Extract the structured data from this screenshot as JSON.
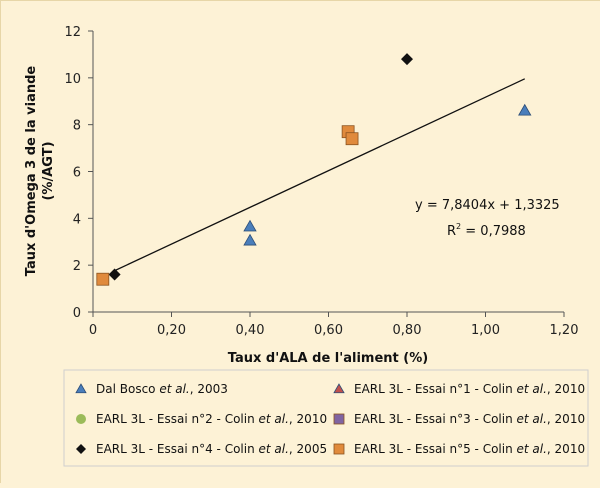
{
  "chart_data": {
    "type": "scatter",
    "xlabel": "Taux d'ALA de l'aliment (%)",
    "ylabel_line1": "Taux d'Omega 3 de la viande",
    "ylabel_line2": "(%/AGT)",
    "xlim": [
      0,
      1.2
    ],
    "ylim": [
      0,
      12
    ],
    "x_ticks": [
      "0",
      "0,20",
      "0,40",
      "0,60",
      "0,80",
      "1,00",
      "1,20"
    ],
    "x_tick_values": [
      0,
      0.2,
      0.4,
      0.6,
      0.8,
      1.0,
      1.2
    ],
    "y_ticks": [
      "0",
      "2",
      "4",
      "6",
      "8",
      "10",
      "12"
    ],
    "y_tick_values": [
      0,
      2,
      4,
      6,
      8,
      10,
      12
    ],
    "grid": "none",
    "legend_position": "bottom",
    "series": [
      {
        "legend": [
          "Dal Bosco ",
          "et al.",
          ", 2003"
        ],
        "marker": "triangle",
        "color": "#4a7ebb",
        "points": [
          [
            0.4,
            3.65
          ],
          [
            0.4,
            3.05
          ],
          [
            1.1,
            8.6
          ]
        ]
      },
      {
        "legend": [
          "EARL 3L - Essai n°1 - Colin ",
          "et al.",
          ", 2010"
        ],
        "marker": "triangle",
        "color": "#c0504d",
        "points": []
      },
      {
        "legend": [
          "EARL 3L - Essai n°2 - Colin ",
          "et al.",
          ", 2010"
        ],
        "marker": "circle",
        "color": "#9bbb59",
        "points": []
      },
      {
        "legend": [
          "EARL 3L - Essai n°3 - Colin ",
          "et al.",
          ", 2010"
        ],
        "marker": "square",
        "color": "#8064a2",
        "points": []
      },
      {
        "legend": [
          "EARL 3L - Essai n°4 - Colin ",
          "et al.",
          ", 2005"
        ],
        "marker": "diamond",
        "color": "#111111",
        "points": [
          [
            0.8,
            10.8
          ],
          [
            0.055,
            1.6
          ]
        ]
      },
      {
        "legend": [
          "EARL 3L - Essai n°5 - Colin ",
          "et al.",
          ", 2010"
        ],
        "marker": "square",
        "color": "#e08a3c",
        "points": [
          [
            0.65,
            7.7
          ],
          [
            0.66,
            7.4
          ],
          [
            0.025,
            1.4
          ]
        ]
      }
    ],
    "trendline": {
      "slope": 7.8404,
      "intercept": 1.3325,
      "x_start": 0.05,
      "x_end": 1.1,
      "equation": "y = 7,8404x + 1,3325",
      "r2_prefix": "R",
      "r2_sup": "2",
      "r2_value": " = 0,7988"
    }
  }
}
